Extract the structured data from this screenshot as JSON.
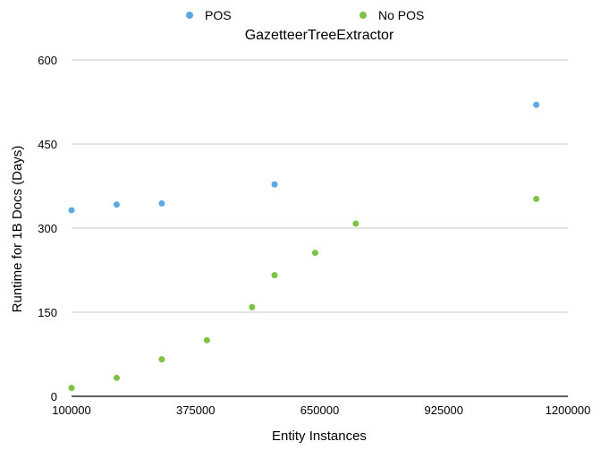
{
  "chart_data": {
    "type": "scatter",
    "title": "GazetteerTreeExtractor",
    "xlabel": "Entity Instances",
    "ylabel": "Runtime for 1B Docs (Days)",
    "xlim": [
      100000,
      1200000
    ],
    "ylim": [
      0,
      600
    ],
    "x_ticks": [
      100000,
      375000,
      650000,
      925000,
      1200000
    ],
    "y_ticks": [
      0,
      150,
      300,
      450,
      600
    ],
    "grid": true,
    "legend_position": "top",
    "series": [
      {
        "name": "POS",
        "color": "#5aa9e6",
        "points": [
          {
            "x": 100000,
            "y": 332
          },
          {
            "x": 200000,
            "y": 342
          },
          {
            "x": 300000,
            "y": 344
          },
          {
            "x": 550000,
            "y": 378
          },
          {
            "x": 1130000,
            "y": 520
          }
        ]
      },
      {
        "name": "No POS",
        "color": "#7dc242",
        "points": [
          {
            "x": 100000,
            "y": 15
          },
          {
            "x": 200000,
            "y": 33
          },
          {
            "x": 300000,
            "y": 66
          },
          {
            "x": 400000,
            "y": 100
          },
          {
            "x": 500000,
            "y": 159
          },
          {
            "x": 550000,
            "y": 216
          },
          {
            "x": 640000,
            "y": 256
          },
          {
            "x": 730000,
            "y": 308
          },
          {
            "x": 1130000,
            "y": 352
          }
        ]
      }
    ]
  }
}
